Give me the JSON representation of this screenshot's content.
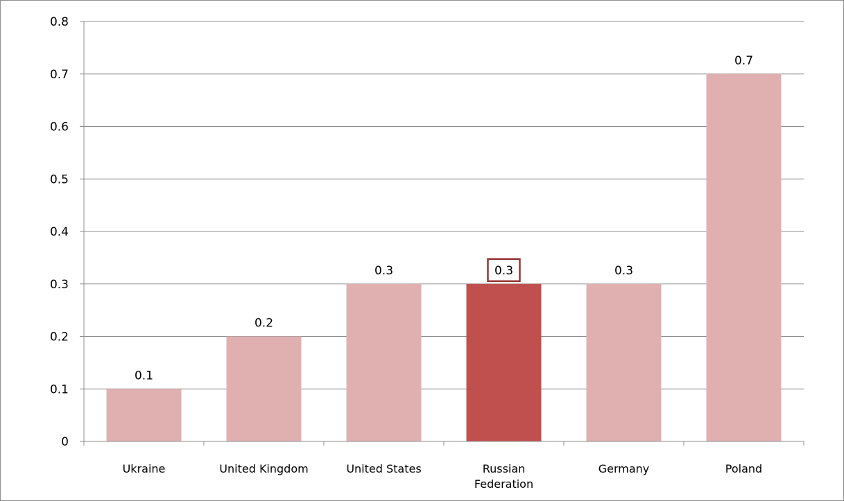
{
  "chart_data": {
    "type": "bar",
    "title": "",
    "xlabel": "",
    "ylabel": "",
    "categories": [
      "Ukraine",
      "United Kingdom",
      "United States",
      "Russian Federation",
      "Germany",
      "Poland"
    ],
    "category_lines": [
      [
        "Ukraine"
      ],
      [
        "United Kingdom"
      ],
      [
        "United States"
      ],
      [
        "Russian",
        "Federation"
      ],
      [
        "Germany"
      ],
      [
        "Poland"
      ]
    ],
    "values": [
      0.1,
      0.2,
      0.3,
      0.3,
      0.3,
      0.7
    ],
    "data_labels": [
      "0.1",
      "0.2",
      "0.3",
      "0.3",
      "0.3",
      "0.7"
    ],
    "highlight_index": 3,
    "ylim": [
      0,
      0.8
    ],
    "yticks": [
      0,
      0.1,
      0.2,
      0.3,
      0.4,
      0.5,
      0.6,
      0.7,
      0.8
    ],
    "ytick_labels": [
      "0",
      "0.1",
      "0.2",
      "0.3",
      "0.4",
      "0.5",
      "0.6",
      "0.7",
      "0.8"
    ],
    "grid": true,
    "legend": "none",
    "colors": {
      "bar": "#e0b0b1",
      "highlight": "#c0504d",
      "highlight_box": "#963634",
      "grid": "#8c8c8c",
      "axis": "#8c8c8c"
    }
  }
}
